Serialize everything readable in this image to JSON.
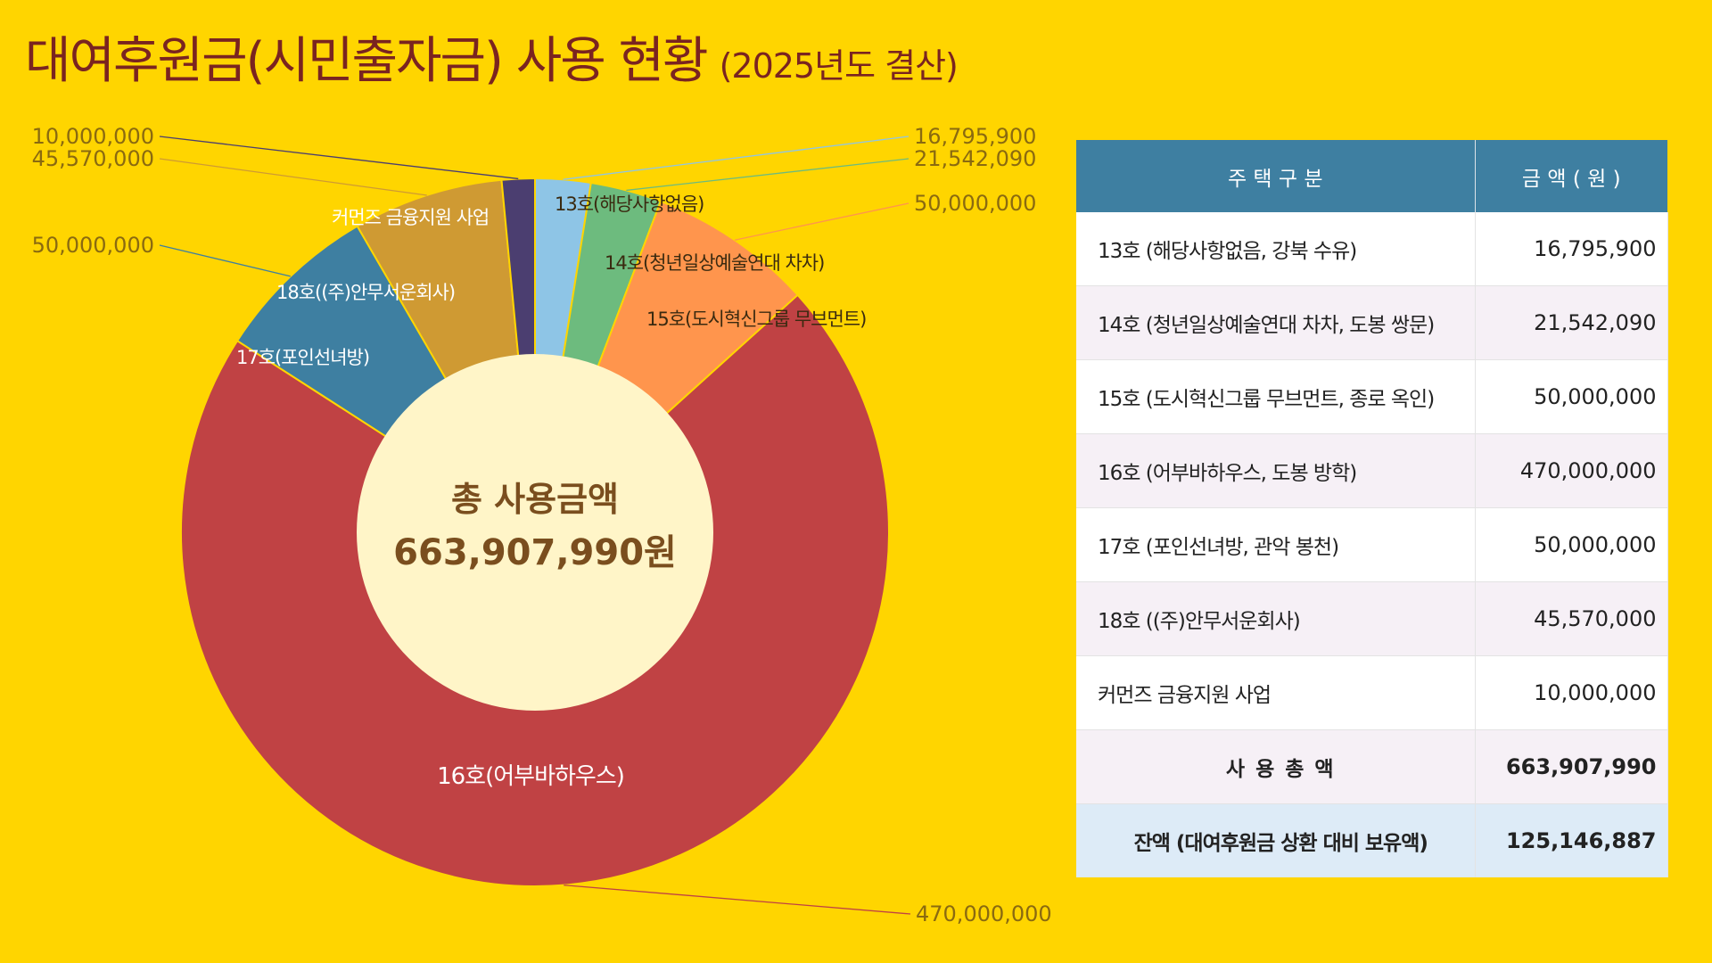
{
  "title": {
    "main": "대여후원금(시민출자금) 사용 현황",
    "sub": "(2025년도 결산)"
  },
  "colors": {
    "background": "#FFD500",
    "title": "#7A2420",
    "table_header": "#3E7FA1",
    "center_circle": "#FFF5C8",
    "center_text": "#7A4E1E",
    "leader_label": "#8A6A10"
  },
  "chart_data": {
    "type": "pie",
    "donut": true,
    "center_label": {
      "line1": "총 사용금액",
      "line2": "663,907,990원"
    },
    "slices": [
      {
        "label": "13호(해당사항없음)",
        "value": 16795900,
        "value_label": "16,795,900",
        "color": "#8EC5E6"
      },
      {
        "label": "14호(청년일상예술연대 차차)",
        "value": 21542090,
        "value_label": "21,542,090",
        "color": "#6DBB7E"
      },
      {
        "label": "15호(도시혁신그룹 무브먼트)",
        "value": 50000000,
        "value_label": "50,000,000",
        "color": "#FF954D"
      },
      {
        "label": "16호(어부바하우스)",
        "value": 470000000,
        "value_label": "470,000,000",
        "color": "#C04244"
      },
      {
        "label": "17호(포인선녀방)",
        "value": 50000000,
        "value_label": "50,000,000",
        "color": "#3E7FA1"
      },
      {
        "label": "18호((주)안무서운회사)",
        "value": 45570000,
        "value_label": "45,570,000",
        "color": "#CF9A33"
      },
      {
        "label": "커먼즈 금융지원 사업",
        "value": 10000000,
        "value_label": "10,000,000",
        "color": "#4B3E70"
      }
    ]
  },
  "table": {
    "headers": [
      "주 택 구 분",
      "금 액 ( 원 )"
    ],
    "rows": [
      [
        "13호 (해당사항없음, 강북 수유)",
        "16,795,900"
      ],
      [
        "14호 (청년일상예술연대 차차, 도봉 쌍문)",
        "21,542,090"
      ],
      [
        "15호 (도시혁신그룹 무브먼트, 종로 옥인)",
        "50,000,000"
      ],
      [
        "16호 (어부바하우스, 도봉 방학)",
        "470,000,000"
      ],
      [
        "17호 (포인선녀방, 관악 봉천)",
        "50,000,000"
      ],
      [
        "18호 ((주)안무서운회사)",
        "45,570,000"
      ],
      [
        "커먼즈 금융지원 사업",
        "10,000,000"
      ]
    ],
    "total": [
      "사 용 총 액",
      "663,907,990"
    ],
    "balance": [
      "잔액 (대여후원금 상환 대비 보유액)",
      "125,146,887"
    ]
  }
}
